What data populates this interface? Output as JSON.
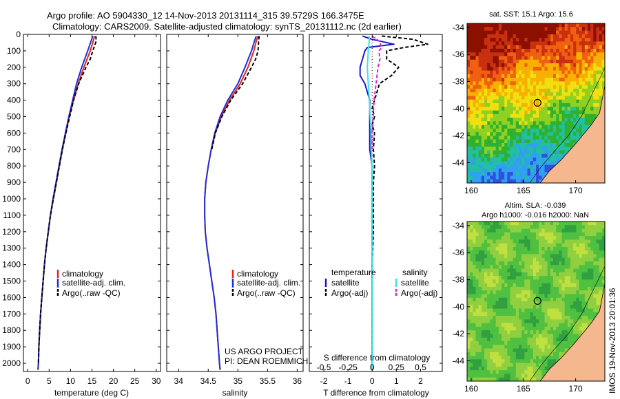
{
  "header": {
    "line1": "Argo profile: AO 5904330_12 14-Nov-2013 20131114_315 39.5729S 166.3475E",
    "line2": "Climatology: CARS2009. Satellite-adjusted climatology: synTS_20131112.nc (2d earlier)"
  },
  "footer_text": {
    "project": "US ARGO PROJECT",
    "pi": "PI: DEAN ROEMMICH",
    "imos_stamp": "IMOS 19-Nov-2013 20:01:36"
  },
  "colors": {
    "climatology": "#e8231c",
    "satellite": "#1f2fd6",
    "argo": "#000000",
    "t_sat": "#1418c8",
    "s_sat": "#3fe0f0",
    "s_argo": "#e020e0",
    "land": "#f5b88e"
  },
  "chart_data": [
    {
      "id": "temperature",
      "type": "line",
      "xlabel": "temperature (deg C)",
      "ylabel": "",
      "xlim": [
        -1,
        31
      ],
      "ylim": [
        2050,
        0
      ],
      "xticks": [
        0,
        5,
        10,
        15,
        20,
        25,
        30
      ],
      "yticks": [
        0,
        100,
        200,
        300,
        400,
        500,
        600,
        700,
        800,
        900,
        1000,
        1100,
        1200,
        1300,
        1400,
        1500,
        1600,
        1700,
        1800,
        1900,
        2000
      ],
      "legend": [
        "climatology",
        "satellite-adj. clim.",
        "Argo(..raw -QC)"
      ],
      "series": [
        {
          "name": "climatology",
          "style": "solid",
          "depth": [
            10,
            40,
            100,
            200,
            300,
            400,
            500,
            600,
            700,
            800,
            900,
            1000,
            1100,
            1200,
            1300,
            1400,
            1500,
            1600,
            1700,
            1800,
            1900,
            2000,
            2040
          ],
          "values": [
            15.6,
            15.3,
            14.6,
            13.1,
            11.8,
            10.7,
            9.7,
            8.9,
            8.1,
            7.4,
            6.7,
            6.0,
            5.3,
            4.8,
            4.3,
            3.9,
            3.6,
            3.3,
            3.0,
            2.8,
            2.6,
            2.5,
            2.4
          ]
        },
        {
          "name": "satellite-adj. clim.",
          "style": "solid",
          "depth": [
            10,
            40,
            100,
            200,
            300,
            400,
            500,
            600,
            700,
            800,
            900,
            1000,
            1100,
            1200,
            1300,
            1400,
            1500,
            1600,
            1700,
            1800,
            1900,
            2000,
            2040
          ],
          "values": [
            15.2,
            14.8,
            14.0,
            12.6,
            11.4,
            10.5,
            9.6,
            8.8,
            8.0,
            7.3,
            6.6,
            5.9,
            5.3,
            4.8,
            4.3,
            3.9,
            3.6,
            3.3,
            3.0,
            2.8,
            2.6,
            2.5,
            2.4
          ]
        },
        {
          "name": "Argo(..raw -QC)",
          "style": "dashed",
          "depth": [
            10,
            40,
            100,
            150,
            200,
            300,
            400,
            500,
            600,
            700,
            800,
            900,
            1000,
            1100,
            1200,
            1300,
            1400,
            1500,
            1600,
            1700,
            1800,
            1900,
            2000
          ],
          "values": [
            15.9,
            16.0,
            15.2,
            14.6,
            13.6,
            11.9,
            10.7,
            9.8,
            8.9,
            8.1,
            7.4,
            6.7,
            6.0,
            5.3,
            4.8,
            4.3,
            3.9,
            3.6,
            3.3,
            3.0,
            2.8,
            2.6,
            2.5
          ]
        }
      ]
    },
    {
      "id": "salinity",
      "type": "line",
      "xlabel": "salinity",
      "ylabel": "",
      "xlim": [
        33.8,
        36.1
      ],
      "ylim": [
        2050,
        0
      ],
      "xticks": [
        34,
        34.5,
        35,
        35.5,
        36
      ],
      "legend": [
        "climatology",
        "satellite-adj. clim.",
        "Argo(..raw -QC)"
      ],
      "series": [
        {
          "name": "climatology",
          "style": "solid",
          "depth": [
            10,
            40,
            100,
            200,
            300,
            400,
            500,
            600,
            700,
            800,
            900,
            1000,
            1100,
            1200,
            1300,
            1400,
            1500,
            1600,
            1700,
            1800,
            1900,
            2000,
            2040
          ],
          "values": [
            35.34,
            35.31,
            35.27,
            35.17,
            35.04,
            34.86,
            34.72,
            34.62,
            34.55,
            34.5,
            34.46,
            34.44,
            34.44,
            34.45,
            34.48,
            34.52,
            34.56,
            34.6,
            34.63,
            34.65,
            34.67,
            34.69,
            34.7
          ]
        },
        {
          "name": "satellite-adj. clim.",
          "style": "solid",
          "depth": [
            10,
            40,
            100,
            200,
            300,
            400,
            500,
            600,
            700,
            800,
            900,
            1000,
            1100,
            1200,
            1300,
            1400,
            1500,
            1600,
            1700,
            1800,
            1900,
            2000,
            2040
          ],
          "values": [
            35.31,
            35.28,
            35.23,
            35.12,
            35.0,
            34.83,
            34.7,
            34.61,
            34.55,
            34.5,
            34.46,
            34.44,
            34.44,
            34.45,
            34.48,
            34.52,
            34.56,
            34.6,
            34.63,
            34.65,
            34.67,
            34.69,
            34.7
          ]
        },
        {
          "name": "Argo(..raw -QC)",
          "style": "dashed",
          "depth": [
            10,
            40,
            100,
            150,
            200,
            300,
            400,
            500,
            600,
            700
          ],
          "values": [
            35.36,
            35.35,
            35.34,
            35.3,
            35.23,
            35.08,
            34.88,
            34.73,
            34.62,
            34.56
          ]
        }
      ]
    },
    {
      "id": "difference",
      "type": "line",
      "xlabel": "T difference from climatology",
      "xlabel_top": "S difference from climatology",
      "ylabel": "",
      "xlim": [
        -2.6,
        2.9
      ],
      "ylim": [
        2050,
        0
      ],
      "xticks": [
        -2,
        -1,
        0,
        1,
        2
      ],
      "xticks_top": [
        -0.5,
        -0.25,
        0,
        0.25,
        0.5
      ],
      "legend_temperature_title": "temperature",
      "legend_salinity_title": "salinity",
      "legend": [
        "satellite",
        "Argo(-adj)",
        "satellite",
        "Argo(-adj)"
      ],
      "series": [
        {
          "name": "T satellite",
          "style": "solid",
          "depth": [
            10,
            30,
            60,
            80,
            100,
            150,
            200,
            250,
            300,
            350,
            400,
            500,
            600,
            700,
            800,
            900,
            1000,
            1200,
            1400,
            1600,
            1800,
            2000,
            2040
          ],
          "values": [
            -0.4,
            0.0,
            0.9,
            -0.2,
            -0.3,
            -0.4,
            -0.5,
            -0.5,
            -0.3,
            -0.2,
            -0.1,
            -0.1,
            -0.1,
            -0.1,
            0.0,
            0.0,
            0.0,
            0.0,
            0.0,
            0.0,
            0.0,
            0.0,
            0.0
          ]
        },
        {
          "name": "T Argo(-adj)",
          "style": "dashed",
          "depth": [
            10,
            30,
            60,
            80,
            100,
            150,
            200,
            250,
            300,
            350,
            400,
            450,
            500,
            550,
            600,
            700,
            800,
            900,
            1000,
            1200,
            1400,
            1600,
            1800,
            2000
          ],
          "values": [
            0.4,
            1.7,
            2.3,
            1.3,
            0.6,
            0.6,
            1.1,
            0.8,
            0.3,
            0.2,
            0.1,
            0.0,
            0.1,
            0.0,
            0.1,
            0.05,
            0.1,
            0.05,
            0.05,
            0.05,
            0.0,
            0.0,
            0.0,
            0.0
          ]
        },
        {
          "name": "S satellite",
          "style": "solid",
          "depth": [
            10,
            40,
            100,
            200,
            300,
            400,
            500,
            600,
            700,
            800,
            1000,
            1200,
            1400,
            1600,
            1800,
            2000,
            2040
          ],
          "values": [
            -0.03,
            -0.03,
            -0.04,
            -0.05,
            -0.04,
            -0.03,
            -0.02,
            -0.01,
            -0.01,
            0.0,
            0.0,
            0.0,
            0.0,
            0.0,
            0.0,
            0.0,
            0.0
          ]
        },
        {
          "name": "S Argo(-adj)",
          "style": "dashed",
          "depth": [
            10,
            40,
            80,
            100,
            150,
            200,
            300,
            400,
            500,
            600,
            700
          ],
          "values": [
            0.0,
            0.07,
            0.1,
            0.07,
            0.08,
            0.06,
            0.04,
            0.02,
            0.01,
            0.0,
            0.0
          ]
        }
      ]
    },
    {
      "id": "sst-map",
      "type": "heatmap",
      "title": "sat. SST: 15.1  Argo: 15.6",
      "xlim": [
        159.6,
        172.8
      ],
      "ylim": [
        -45.5,
        -33.7
      ],
      "xticks": [
        160,
        165,
        170
      ],
      "yticks": [
        -34,
        -36,
        -38,
        -40,
        -42,
        -44
      ],
      "marker": {
        "lon": 166.35,
        "lat": -39.57
      },
      "palette": [
        "#8b1000",
        "#c83010",
        "#f06010",
        "#f8b000",
        "#f0e010",
        "#90d020",
        "#30b030",
        "#20c0a0",
        "#30a0f0",
        "#3050e0"
      ]
    },
    {
      "id": "sla-map",
      "type": "heatmap",
      "title": "Altim. SLA: -0.039",
      "subtitle": "Argo h1000: -0.016 h2000: NaN",
      "xlim": [
        159.6,
        172.8
      ],
      "ylim": [
        -45.5,
        -33.7
      ],
      "xticks": [
        160,
        165,
        170
      ],
      "yticks": [
        -34,
        -36,
        -38,
        -40,
        -42,
        -44
      ],
      "marker": {
        "lon": 166.35,
        "lat": -39.57
      },
      "palette": [
        "#30a040",
        "#50c040",
        "#90d040",
        "#c0e040"
      ]
    }
  ]
}
